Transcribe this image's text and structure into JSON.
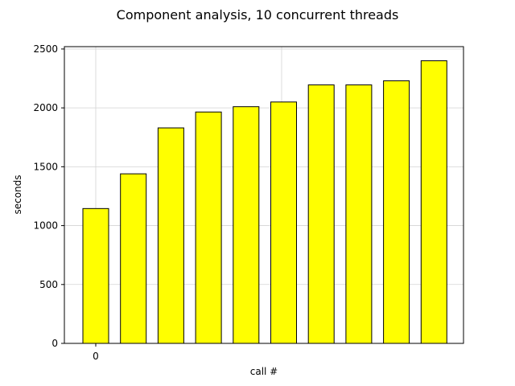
{
  "chart_data": {
    "type": "bar",
    "title": "Component analysis, 10 concurrent threads",
    "xlabel": "call #",
    "ylabel": "seconds",
    "x_tick_labels": [
      "0"
    ],
    "values": [
      1145,
      1440,
      1830,
      1965,
      2010,
      2050,
      2195,
      2195,
      2230,
      2400
    ],
    "ylim": [
      0,
      2520
    ],
    "yticks": [
      0,
      500,
      1000,
      1500,
      2000,
      2500
    ],
    "grid": true,
    "bar_color": "#ffff00",
    "edge_color": "#000000"
  }
}
